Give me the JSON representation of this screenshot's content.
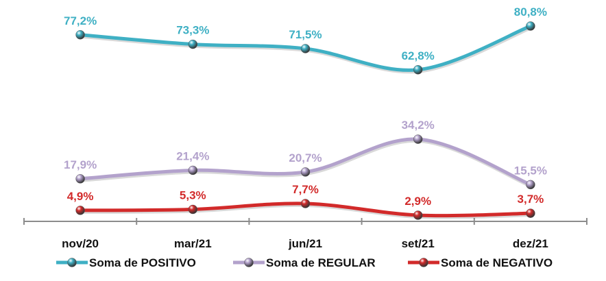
{
  "chart_data": {
    "type": "line",
    "categories": [
      "nov/20",
      "mar/21",
      "jun/21",
      "set/21",
      "dez/21"
    ],
    "series": [
      {
        "name": "Soma de POSITIVO",
        "color": "#3fb0c4",
        "values": [
          77.2,
          73.3,
          71.5,
          62.8,
          80.8
        ],
        "labels": [
          "77,2%",
          "73,3%",
          "71,5%",
          "62,8%",
          "80,8%"
        ]
      },
      {
        "name": "Soma de REGULAR",
        "color": "#b3a2cc",
        "values": [
          17.9,
          21.4,
          20.7,
          34.2,
          15.5
        ],
        "labels": [
          "17,9%",
          "21,4%",
          "20,7%",
          "34,2%",
          "15,5%"
        ]
      },
      {
        "name": "Soma de NEGATIVO",
        "color": "#d22a2a",
        "values": [
          4.9,
          5.3,
          7.7,
          2.9,
          3.7
        ],
        "labels": [
          "4,9%",
          "5,3%",
          "7,7%",
          "2,9%",
          "3,7%"
        ]
      }
    ],
    "ylim": [
      0,
      85
    ],
    "grid": false,
    "legend": "bottom"
  }
}
